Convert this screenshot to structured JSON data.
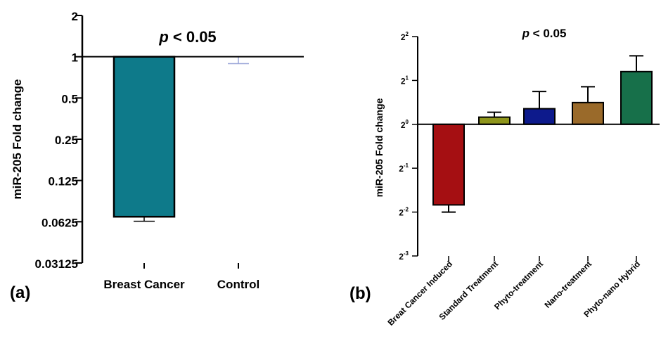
{
  "chart_data": [
    {
      "panel_label": "(a)",
      "type": "bar",
      "scale": "log2",
      "annotation": "p < 0.05",
      "annotation_italic": "p",
      "annotation_rest": " < 0.05",
      "ylabel": "miR-205 Fold change",
      "ylim": [
        0.03125,
        2
      ],
      "yticks": [
        {
          "value": 2,
          "label": "2"
        },
        {
          "value": 1,
          "label": "1"
        },
        {
          "value": 0.5,
          "label": "0.5"
        },
        {
          "value": 0.25,
          "label": "0.25"
        },
        {
          "value": 0.125,
          "label": "0.125"
        },
        {
          "value": 0.0625,
          "label": "0.0625"
        },
        {
          "value": 0.03125,
          "label": "0.03125"
        }
      ],
      "baseline": 1,
      "categories": [
        "Breast Cancer",
        "Control"
      ],
      "values": [
        0.068,
        1
      ],
      "error_low": [
        0.063,
        0.89
      ],
      "colors": [
        "#0e7a8a",
        "#9aa6d8"
      ],
      "grid": false,
      "legend": "none"
    },
    {
      "panel_label": "(b)",
      "type": "bar",
      "scale": "log2",
      "annotation": "p < 0.05",
      "annotation_italic": "p",
      "annotation_rest": " < 0.05",
      "ylabel": "miR-205 Fold change",
      "ylim": [
        0.125,
        4
      ],
      "yticks": [
        {
          "value": 4,
          "base": "2",
          "exp": "2"
        },
        {
          "value": 2,
          "base": "2",
          "exp": "1"
        },
        {
          "value": 1,
          "base": "2",
          "exp": "0"
        },
        {
          "value": 0.5,
          "base": "2",
          "exp": "-1"
        },
        {
          "value": 0.25,
          "base": "2",
          "exp": "-2"
        },
        {
          "value": 0.125,
          "base": "2",
          "exp": "-3"
        }
      ],
      "baseline": 1,
      "categories": [
        "Breat Cancer Induced",
        "Standard Treatment",
        "Phyto-treatment",
        "Nano-treatment",
        "Phyto-nano Hybrid"
      ],
      "values": [
        0.28,
        1.12,
        1.28,
        1.41,
        2.3
      ],
      "error_high": [
        0.25,
        1.21,
        1.68,
        1.81,
        2.95
      ],
      "colors": [
        "#a50f12",
        "#8e951b",
        "#0d1a8c",
        "#9a6a2a",
        "#17704a"
      ],
      "grid": false,
      "legend": "none"
    }
  ]
}
